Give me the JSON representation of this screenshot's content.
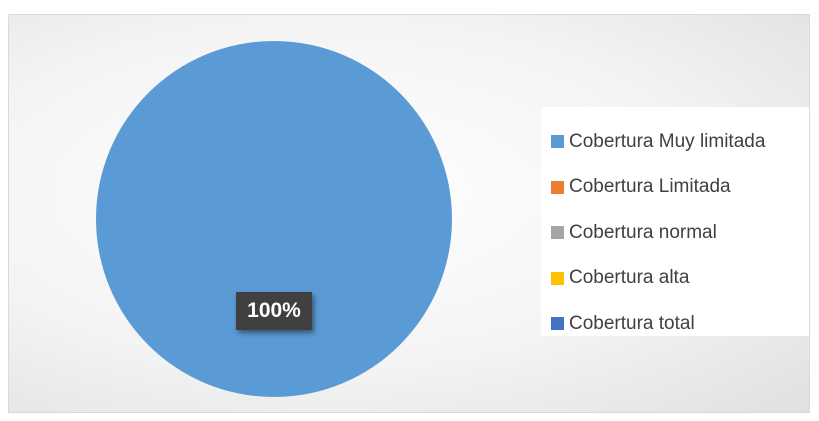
{
  "chart_data": {
    "type": "pie",
    "categories": [
      "Cobertura Muy limitada",
      "Cobertura Limitada",
      "Cobertura normal",
      "Cobertura alta",
      "Cobertura total"
    ],
    "values": [
      1.0,
      0,
      0,
      0,
      0
    ],
    "data_labels": [
      "100%"
    ],
    "colors": [
      "#5b9bd5",
      "#ed7d31",
      "#a5a5a5",
      "#ffc000",
      "#4472c4"
    ],
    "legend_position": "right"
  }
}
